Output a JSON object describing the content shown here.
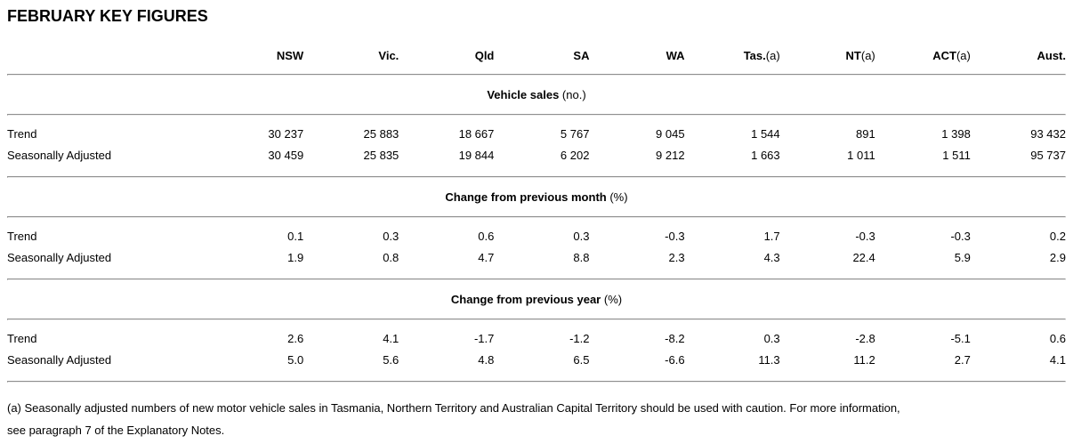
{
  "page": {
    "title": "FEBRUARY KEY FIGURES",
    "footnote": {
      "line1": "(a) Seasonally adjusted numbers of new motor vehicle sales in Tasmania, Northern Territory and Australian Capital Territory should be used with caution. For more information,",
      "line2": "see paragraph 7 of the Explanatory Notes."
    }
  },
  "table": {
    "columns": [
      {
        "label": "NSW",
        "suffix": ""
      },
      {
        "label": "Vic.",
        "suffix": ""
      },
      {
        "label": "Qld",
        "suffix": ""
      },
      {
        "label": "SA",
        "suffix": ""
      },
      {
        "label": "WA",
        "suffix": ""
      },
      {
        "label": "Tas.",
        "suffix": "(a)"
      },
      {
        "label": "NT",
        "suffix": "(a)"
      },
      {
        "label": "ACT",
        "suffix": "(a)"
      },
      {
        "label": "Aust.",
        "suffix": ""
      }
    ],
    "sections": [
      {
        "title": "Vehicle sales",
        "unit": "(no.)",
        "rows": [
          {
            "label": "Trend",
            "values": [
              "30 237",
              "25 883",
              "18 667",
              "5 767",
              "9 045",
              "1 544",
              "891",
              "1 398",
              "93 432"
            ]
          },
          {
            "label": "Seasonally Adjusted",
            "values": [
              "30 459",
              "25 835",
              "19 844",
              "6 202",
              "9 212",
              "1 663",
              "1 011",
              "1 511",
              "95 737"
            ]
          }
        ]
      },
      {
        "title": "Change from previous month",
        "unit": "(%)",
        "rows": [
          {
            "label": "Trend",
            "values": [
              "0.1",
              "0.3",
              "0.6",
              "0.3",
              "-0.3",
              "1.7",
              "-0.3",
              "-0.3",
              "0.2"
            ]
          },
          {
            "label": "Seasonally Adjusted",
            "values": [
              "1.9",
              "0.8",
              "4.7",
              "8.8",
              "2.3",
              "4.3",
              "22.4",
              "5.9",
              "2.9"
            ]
          }
        ]
      },
      {
        "title": "Change from previous year",
        "unit": "(%)",
        "rows": [
          {
            "label": "Trend",
            "values": [
              "2.6",
              "4.1",
              "-1.7",
              "-1.2",
              "-8.2",
              "0.3",
              "-2.8",
              "-5.1",
              "0.6"
            ]
          },
          {
            "label": "Seasonally Adjusted",
            "values": [
              "5.0",
              "5.6",
              "4.8",
              "6.5",
              "-6.6",
              "11.3",
              "11.2",
              "2.7",
              "4.1"
            ]
          }
        ]
      }
    ]
  }
}
